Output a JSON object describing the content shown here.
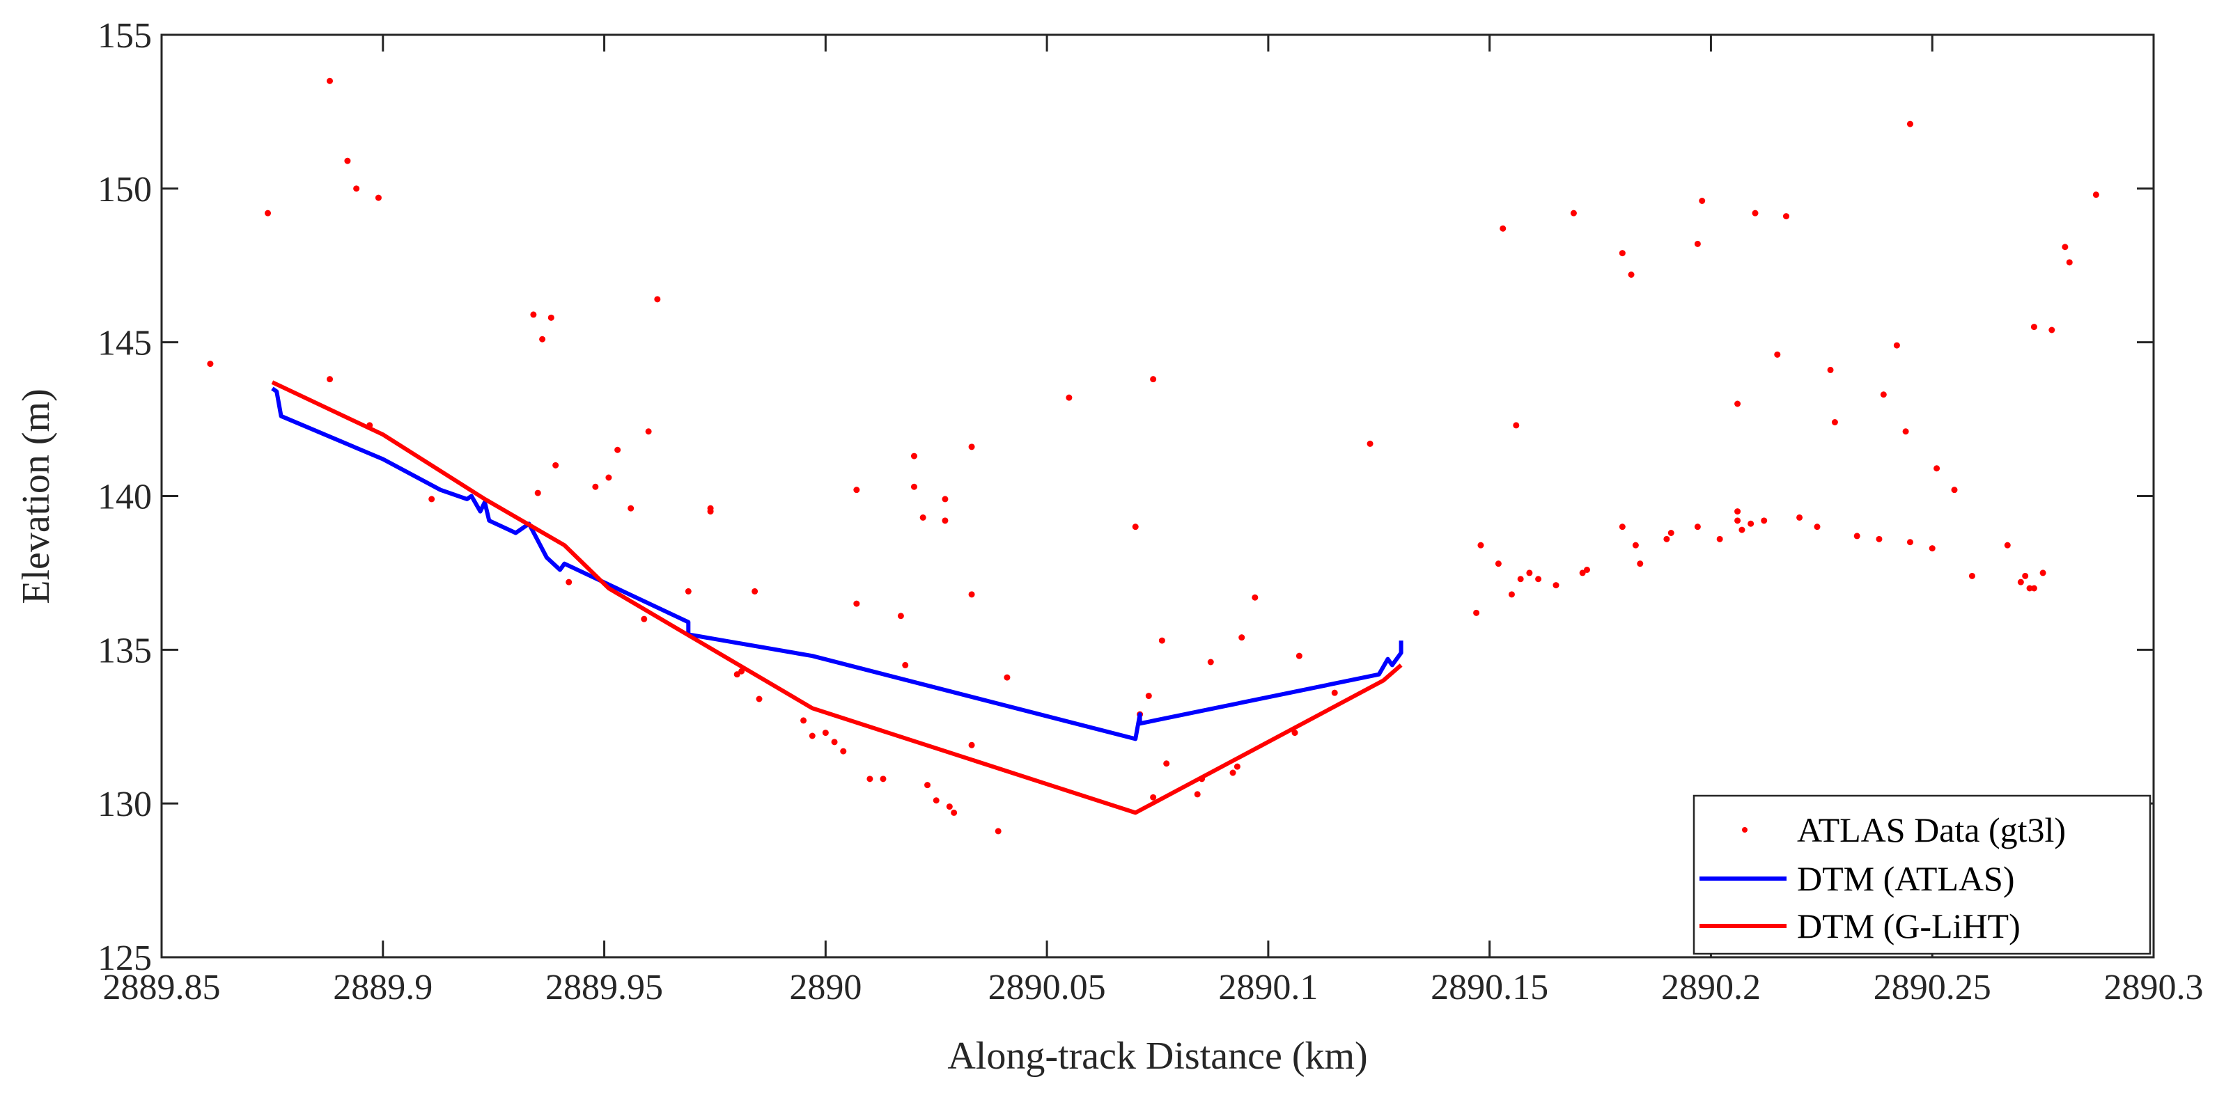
{
  "chart_data": {
    "type": "scatter",
    "title": "",
    "xlabel": "Along-track Distance (km)",
    "ylabel": "Elevation (m)",
    "xlim": [
      2889.85,
      2890.3
    ],
    "ylim": [
      125,
      155
    ],
    "xticks": [
      2889.85,
      2889.9,
      2889.95,
      2890,
      2890.05,
      2890.1,
      2890.15,
      2890.2,
      2890.25,
      2890.3
    ],
    "xtick_labels": [
      "2889.85",
      "2889.9",
      "2889.95",
      "2890",
      "2890.05",
      "2890.1",
      "2890.15",
      "2890.2",
      "2890.25",
      "2890.3"
    ],
    "yticks": [
      125,
      130,
      135,
      140,
      145,
      150,
      155
    ],
    "ytick_labels": [
      "125",
      "130",
      "135",
      "140",
      "145",
      "150",
      "155"
    ],
    "grid": false,
    "legend_position": "bottom-right",
    "legend": [
      {
        "label": "ATLAS Data (gt3l)",
        "style": "dot",
        "color": "#ff0000"
      },
      {
        "label": "DTM (ATLAS)",
        "style": "line",
        "color": "#0000ff"
      },
      {
        "label": "DTM (G-LiHT)",
        "style": "line",
        "color": "#ff0000"
      }
    ],
    "series": [
      {
        "name": "ATLAS Data (gt3l)",
        "kind": "scatter",
        "color": "#ff0000",
        "points": [
          [
            2889.861,
            144.3
          ],
          [
            2889.874,
            149.2
          ],
          [
            2889.888,
            153.5
          ],
          [
            2889.888,
            143.8
          ],
          [
            2889.892,
            150.9
          ],
          [
            2889.894,
            150.0
          ],
          [
            2889.897,
            142.3
          ],
          [
            2889.899,
            149.7
          ],
          [
            2889.911,
            139.9
          ],
          [
            2889.934,
            145.9
          ],
          [
            2889.935,
            140.1
          ],
          [
            2889.936,
            145.1
          ],
          [
            2889.938,
            145.8
          ],
          [
            2889.939,
            141.0
          ],
          [
            2889.942,
            137.2
          ],
          [
            2889.948,
            140.3
          ],
          [
            2889.951,
            140.6
          ],
          [
            2889.953,
            141.5
          ],
          [
            2889.956,
            139.6
          ],
          [
            2889.959,
            136.0
          ],
          [
            2889.96,
            142.1
          ],
          [
            2889.962,
            146.4
          ],
          [
            2889.969,
            136.9
          ],
          [
            2889.974,
            139.5
          ],
          [
            2889.974,
            139.6
          ],
          [
            2889.98,
            134.2
          ],
          [
            2889.981,
            134.3
          ],
          [
            2889.984,
            136.9
          ],
          [
            2889.985,
            133.4
          ],
          [
            2889.995,
            132.7
          ],
          [
            2889.997,
            132.2
          ],
          [
            2890.0,
            132.3
          ],
          [
            2890.002,
            132.0
          ],
          [
            2890.004,
            131.7
          ],
          [
            2890.007,
            140.2
          ],
          [
            2890.007,
            136.5
          ],
          [
            2890.01,
            130.8
          ],
          [
            2890.013,
            130.8
          ],
          [
            2890.017,
            136.1
          ],
          [
            2890.018,
            134.5
          ],
          [
            2890.02,
            141.3
          ],
          [
            2890.02,
            140.3
          ],
          [
            2890.022,
            139.3
          ],
          [
            2890.023,
            130.6
          ],
          [
            2890.025,
            130.1
          ],
          [
            2890.027,
            139.2
          ],
          [
            2890.027,
            139.9
          ],
          [
            2890.028,
            129.9
          ],
          [
            2890.029,
            129.7
          ],
          [
            2890.033,
            141.6
          ],
          [
            2890.033,
            136.8
          ],
          [
            2890.033,
            131.9
          ],
          [
            2890.039,
            129.1
          ],
          [
            2890.041,
            134.1
          ],
          [
            2890.055,
            143.2
          ],
          [
            2890.07,
            139.0
          ],
          [
            2890.071,
            132.9
          ],
          [
            2890.073,
            133.5
          ],
          [
            2890.074,
            143.8
          ],
          [
            2890.074,
            130.2
          ],
          [
            2890.076,
            135.3
          ],
          [
            2890.077,
            131.3
          ],
          [
            2890.084,
            130.3
          ],
          [
            2890.085,
            130.8
          ],
          [
            2890.087,
            134.6
          ],
          [
            2890.092,
            131.0
          ],
          [
            2890.093,
            131.2
          ],
          [
            2890.094,
            135.4
          ],
          [
            2890.097,
            136.7
          ],
          [
            2890.106,
            132.3
          ],
          [
            2890.107,
            134.8
          ],
          [
            2890.115,
            133.6
          ],
          [
            2890.123,
            141.7
          ],
          [
            2890.147,
            136.2
          ],
          [
            2890.148,
            138.4
          ],
          [
            2890.152,
            137.8
          ],
          [
            2890.153,
            148.7
          ],
          [
            2890.155,
            136.8
          ],
          [
            2890.156,
            142.3
          ],
          [
            2890.157,
            137.3
          ],
          [
            2890.159,
            137.5
          ],
          [
            2890.161,
            137.3
          ],
          [
            2890.165,
            137.1
          ],
          [
            2890.169,
            149.2
          ],
          [
            2890.171,
            137.5
          ],
          [
            2890.172,
            137.6
          ],
          [
            2890.18,
            139.0
          ],
          [
            2890.18,
            147.9
          ],
          [
            2890.182,
            147.2
          ],
          [
            2890.183,
            138.4
          ],
          [
            2890.184,
            137.8
          ],
          [
            2890.19,
            138.6
          ],
          [
            2890.191,
            138.8
          ],
          [
            2890.197,
            148.2
          ],
          [
            2890.197,
            139.0
          ],
          [
            2890.198,
            149.6
          ],
          [
            2890.202,
            138.6
          ],
          [
            2890.206,
            143.0
          ],
          [
            2890.206,
            139.5
          ],
          [
            2890.206,
            139.2
          ],
          [
            2890.207,
            138.9
          ],
          [
            2890.209,
            139.1
          ],
          [
            2890.21,
            149.2
          ],
          [
            2890.212,
            139.2
          ],
          [
            2890.215,
            144.6
          ],
          [
            2890.217,
            149.1
          ],
          [
            2890.22,
            139.3
          ],
          [
            2890.224,
            139.0
          ],
          [
            2890.227,
            144.1
          ],
          [
            2890.228,
            142.4
          ],
          [
            2890.233,
            138.7
          ],
          [
            2890.238,
            138.6
          ],
          [
            2890.239,
            143.3
          ],
          [
            2890.242,
            144.9
          ],
          [
            2890.244,
            142.1
          ],
          [
            2890.245,
            152.1
          ],
          [
            2890.245,
            138.5
          ],
          [
            2890.25,
            138.3
          ],
          [
            2890.251,
            140.9
          ],
          [
            2890.255,
            140.2
          ],
          [
            2890.259,
            137.4
          ],
          [
            2890.267,
            138.4
          ],
          [
            2890.27,
            137.2
          ],
          [
            2890.271,
            137.4
          ],
          [
            2890.272,
            137.0
          ],
          [
            2890.273,
            145.5
          ],
          [
            2890.273,
            137.0
          ],
          [
            2890.275,
            137.5
          ],
          [
            2890.277,
            145.4
          ],
          [
            2890.28,
            148.1
          ],
          [
            2890.281,
            147.6
          ],
          [
            2890.287,
            149.8
          ]
        ]
      },
      {
        "name": "DTM (ATLAS)",
        "kind": "line",
        "color": "#0000ff",
        "points": [
          [
            2889.875,
            143.5
          ],
          [
            2889.876,
            143.4
          ],
          [
            2889.877,
            142.6
          ],
          [
            2889.9,
            141.2
          ],
          [
            2889.913,
            140.2
          ],
          [
            2889.919,
            139.9
          ],
          [
            2889.92,
            140.0
          ],
          [
            2889.922,
            139.5
          ],
          [
            2889.923,
            139.8
          ],
          [
            2889.924,
            139.2
          ],
          [
            2889.93,
            138.8
          ],
          [
            2889.933,
            139.1
          ],
          [
            2889.937,
            138.0
          ],
          [
            2889.94,
            137.6
          ],
          [
            2889.941,
            137.8
          ],
          [
            2889.969,
            135.9
          ],
          [
            2889.969,
            135.5
          ],
          [
            2889.997,
            134.8
          ],
          [
            2890.07,
            132.1
          ],
          [
            2890.071,
            132.9
          ],
          [
            2890.071,
            132.6
          ],
          [
            2890.125,
            134.2
          ],
          [
            2890.127,
            134.7
          ],
          [
            2890.128,
            134.5
          ],
          [
            2890.13,
            134.9
          ],
          [
            2890.13,
            135.3
          ]
        ]
      },
      {
        "name": "DTM (G-LiHT)",
        "kind": "line",
        "color": "#ff0000",
        "points": [
          [
            2889.875,
            143.7
          ],
          [
            2889.9,
            142.0
          ],
          [
            2889.923,
            139.9
          ],
          [
            2889.941,
            138.4
          ],
          [
            2889.951,
            137.0
          ],
          [
            2889.997,
            133.1
          ],
          [
            2890.07,
            129.7
          ],
          [
            2890.126,
            134.0
          ],
          [
            2890.13,
            134.5
          ]
        ]
      }
    ]
  }
}
